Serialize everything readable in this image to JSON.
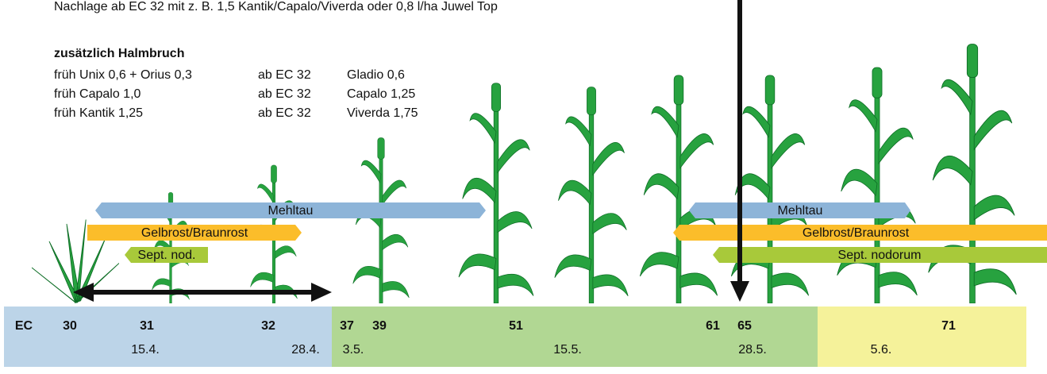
{
  "header": {
    "note": "Nachlage ab EC 32 mit z. B. 1,5 Kantik/Capalo/Viverda oder 0,8 l/ha Juwel Top"
  },
  "section": {
    "title": "zusätzlich Halmbruch",
    "rows": [
      [
        "früh Unix 0,6 + Orius 0,3",
        "ab EC 32",
        "Gladio 0,6"
      ],
      [
        "früh Capalo 1,0",
        "ab EC 32",
        "Capalo 1,25"
      ],
      [
        "früh Kantik 1,25",
        "ab EC 32",
        "Viverda 1,75"
      ]
    ]
  },
  "bands": {
    "left": [
      "Mehltau",
      "Gelbrost/Braunrost",
      "Sept. nod."
    ],
    "right": [
      "Mehltau",
      "Gelbrost/Braunrost",
      "Sept. nodorum"
    ]
  },
  "timeline": {
    "ec_label": "EC",
    "stages": [
      "30",
      "31",
      "32",
      "37",
      "39",
      "51",
      "61",
      "65",
      "71"
    ],
    "dates": [
      "15.4.",
      "28.4.",
      "3.5.",
      "15.5.",
      "28.5.",
      "5.6."
    ]
  }
}
